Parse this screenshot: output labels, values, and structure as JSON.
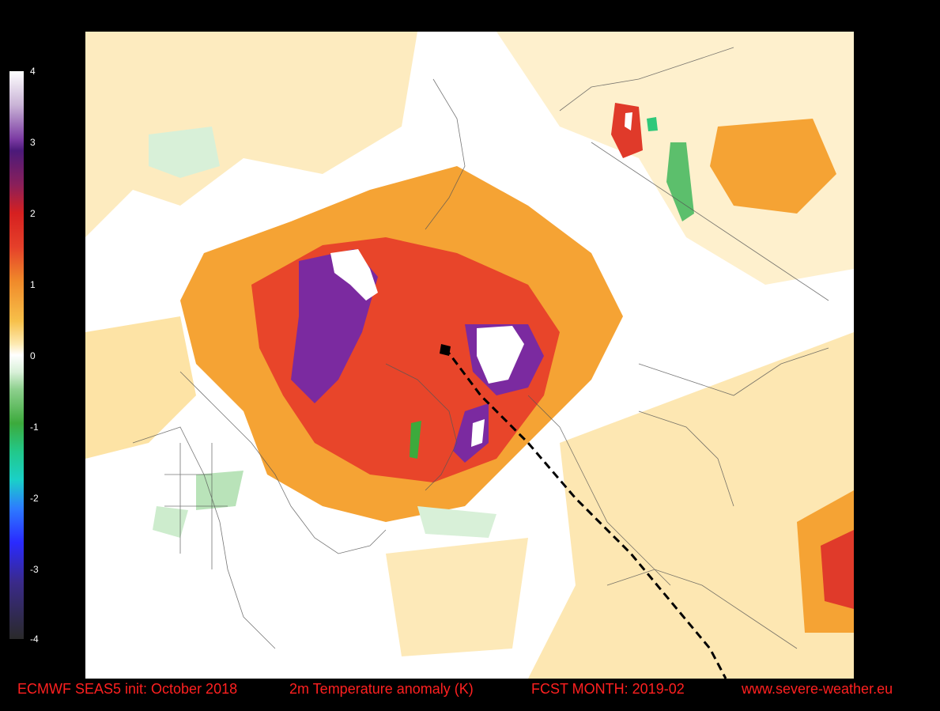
{
  "colorbar": {
    "ticks": [
      "4",
      "3",
      "2",
      "1",
      "0",
      "-1",
      "-2",
      "-3",
      "-4"
    ]
  },
  "footer": {
    "model_init": "ECMWF SEAS5 init: October 2018",
    "variable": "2m Temperature anomaly (K)",
    "forecast_month": "FCST MONTH: 2019-02",
    "website": "www.severe-weather.eu"
  },
  "colors": {
    "strong_warm": "#7b2aa0",
    "warm": "#e8452a",
    "mild_warm": "#f39a2e",
    "slight_warm": "#fde3a5",
    "cool": "#8ed08e",
    "title_text": "#ff2020"
  }
}
